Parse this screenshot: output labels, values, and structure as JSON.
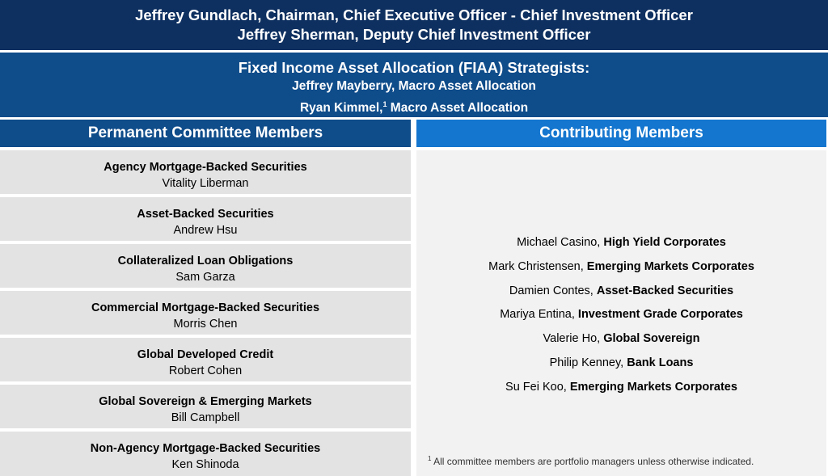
{
  "header": {
    "line1": "Jeffrey Gundlach, Chairman, Chief Executive Officer - Chief Investment Officer",
    "line2": "Jeffrey Sherman, Deputy Chief Investment Officer"
  },
  "fiaa": {
    "title": "Fixed Income Asset Allocation (FIAA) Strategists:",
    "member1": "Jeffrey Mayberry, Macro Asset Allocation",
    "member2_name": "Ryan Kimmel,",
    "member2_sup": "1",
    "member2_role": " Macro Asset Allocation"
  },
  "permanent": {
    "heading": "Permanent Committee Members",
    "items": [
      {
        "title": "Agency Mortgage-Backed Securities",
        "name": "Vitality Liberman"
      },
      {
        "title": "Asset-Backed Securities",
        "name": "Andrew Hsu"
      },
      {
        "title": "Collateralized Loan Obligations",
        "name": "Sam Garza"
      },
      {
        "title": "Commercial Mortgage-Backed Securities",
        "name": "Morris Chen"
      },
      {
        "title": "Global Developed Credit",
        "name": "Robert Cohen"
      },
      {
        "title": "Global Sovereign & Emerging Markets",
        "name": "Bill Campbell"
      },
      {
        "title": "Non-Agency Mortgage-Backed Securities",
        "name": "Ken Shinoda"
      }
    ]
  },
  "contributing": {
    "heading": "Contributing Members",
    "items": [
      {
        "name": "Michael Casino, ",
        "area": "High Yield Corporates"
      },
      {
        "name": "Mark Christensen, ",
        "area": "Emerging Markets Corporates"
      },
      {
        "name": "Damien Contes, ",
        "area": "Asset-Backed Securities"
      },
      {
        "name": "Mariya Entina, ",
        "area": "Investment Grade Corporates"
      },
      {
        "name": "Valerie Ho, ",
        "area": "Global Sovereign"
      },
      {
        "name": "Philip Kenney, ",
        "area": "Bank Loans"
      },
      {
        "name": "Su Fei Koo, ",
        "area": "Emerging Markets Corporates"
      }
    ],
    "footnote_sup": "1",
    "footnote": " All committee members are portfolio managers unless otherwise indicated."
  }
}
